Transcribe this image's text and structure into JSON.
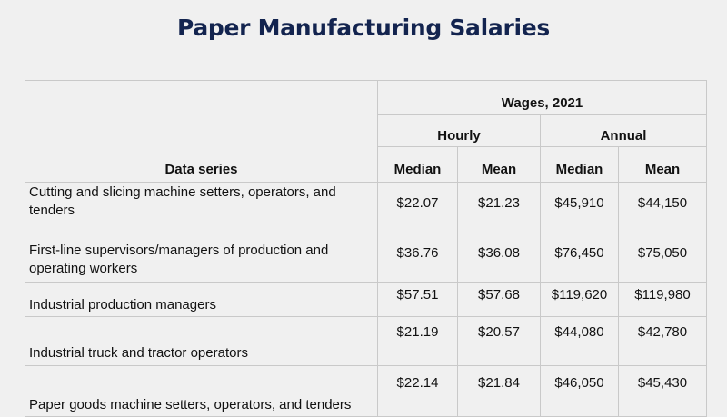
{
  "title": "Paper Manufacturing Salaries",
  "table": {
    "header": {
      "series_label": "Data series",
      "wages_label": "Wages, 2021",
      "hourly_label": "Hourly",
      "annual_label": "Annual",
      "median_label": "Median",
      "mean_label": "Mean"
    },
    "rows": [
      {
        "series": "Cutting and slicing machine setters, operators, and tenders",
        "hourly_median": "$22.07",
        "hourly_mean": "$21.23",
        "annual_median": "$45,910",
        "annual_mean": "$44,150"
      },
      {
        "series": "First-line supervisors/managers of production and operating workers",
        "hourly_median": "$36.76",
        "hourly_mean": "$36.08",
        "annual_median": "$76,450",
        "annual_mean": "$75,050"
      },
      {
        "series": "Industrial production managers",
        "hourly_median": "$57.51",
        "hourly_mean": "$57.68",
        "annual_median": "$119,620",
        "annual_mean": "$119,980"
      },
      {
        "series": "Industrial truck and tractor operators",
        "hourly_median": "$21.19",
        "hourly_mean": "$20.57",
        "annual_median": "$44,080",
        "annual_mean": "$42,780"
      },
      {
        "series": "Paper goods machine setters, operators, and tenders",
        "hourly_median": "$22.14",
        "hourly_mean": "$21.84",
        "annual_median": "$46,050",
        "annual_mean": "$45,430"
      }
    ]
  }
}
